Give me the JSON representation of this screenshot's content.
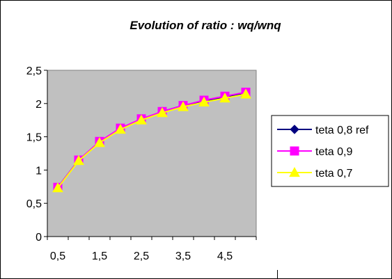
{
  "colors": {
    "plot_area": "#c0c0c0",
    "series_teta_08_ref": "#000080",
    "series_teta_09": "#ff00ff",
    "series_teta_07": "#ffff00"
  },
  "chart_data": {
    "type": "line",
    "title": "Evolution of ratio : wq/wnq",
    "xlabel": "",
    "ylabel": "",
    "x": [
      0.5,
      1,
      1.5,
      2,
      2.5,
      3,
      3.5,
      4,
      4.5,
      5
    ],
    "x_tick_labels": [
      "0,5",
      "1,5",
      "2,5",
      "3,5",
      "4,5"
    ],
    "y_tick_labels": [
      "0",
      "0,5",
      "1",
      "1,5",
      "2",
      "2,5"
    ],
    "xlim": [
      0.25,
      5.25
    ],
    "ylim": [
      0,
      2.5
    ],
    "grid": false,
    "legend_position": "right",
    "series": [
      {
        "name": "teta 0,8 ref",
        "marker": "diamond",
        "values": [
          0.74,
          1.15,
          1.42,
          1.62,
          1.76,
          1.88,
          1.97,
          2.04,
          2.1,
          2.16
        ]
      },
      {
        "name": "teta 0,9",
        "marker": "square",
        "values": [
          0.74,
          1.15,
          1.43,
          1.63,
          1.77,
          1.88,
          1.97,
          2.05,
          2.11,
          2.17
        ]
      },
      {
        "name": "teta 0,7",
        "marker": "triangle",
        "values": [
          0.73,
          1.14,
          1.41,
          1.61,
          1.75,
          1.86,
          1.95,
          2.02,
          2.08,
          2.14
        ]
      }
    ]
  }
}
